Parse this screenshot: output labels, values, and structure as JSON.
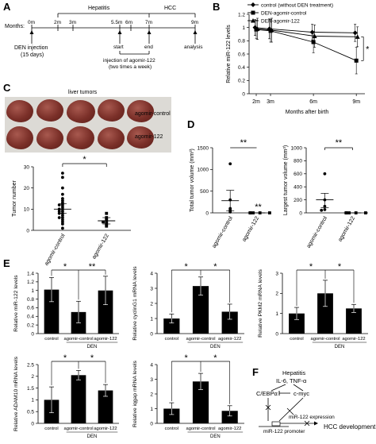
{
  "panel_labels": {
    "a": "A",
    "b": "B",
    "c": "C",
    "d": "D",
    "e": "E",
    "f": "F"
  },
  "panelA": {
    "months_label": "Months:",
    "phases": [
      "Hepatitis",
      "HCC"
    ],
    "ticks": [
      "0m",
      "2m",
      "3m",
      "5.5m",
      "6m",
      "7m",
      "9m"
    ],
    "den_label": "DEN injection",
    "den_sub": "(15 days)",
    "start": "start",
    "end": "end",
    "injection_line1": "injection of agomir-122",
    "injection_line2": "(two times a week)",
    "analysis": "analysis"
  },
  "panelC": {
    "liver_title": "liver tumors",
    "row1": "agomir-control",
    "row2": "agomir-122",
    "ylabel": "Tumor number",
    "star": "*"
  },
  "panelF": {
    "hepatitis": "Hepatitis",
    "cytokines": "IL-6, TNF-α",
    "cebp": "C/EBPα",
    "cmyc": "c-myc",
    "promoter": "miR-122 promoter",
    "expression": "miR-122 expression",
    "hcc": "HCC development"
  },
  "chart_data": [
    {
      "id": "B",
      "type": "line",
      "ylabel": "Relative miR-122 levels",
      "xlabel": "Months after birth",
      "x": [
        2,
        3,
        6,
        9
      ],
      "x_ticks": [
        "2m",
        "3m",
        "6m",
        "9m"
      ],
      "ylim": [
        0,
        1.2
      ],
      "yticks": [
        0,
        0.2,
        0.4,
        0.6,
        0.8,
        1,
        1.2
      ],
      "series": [
        {
          "name": "control (without DEN treatment)",
          "marker": "diamond",
          "values": [
            1.0,
            0.98,
            0.93,
            0.92
          ],
          "err": [
            0.12,
            0.15,
            0.12,
            0.13
          ]
        },
        {
          "name": "DEN-agomir-control",
          "marker": "square",
          "values": [
            0.97,
            0.95,
            0.78,
            0.5
          ],
          "err": [
            0.14,
            0.17,
            0.16,
            0.2
          ]
        },
        {
          "name": "DEN-agomir-122",
          "marker": "triangle",
          "values": [
            0.98,
            0.96,
            0.87,
            0.86
          ],
          "err": [
            0.16,
            0.18,
            0.17,
            0.15
          ]
        }
      ],
      "annotation": "*"
    },
    {
      "id": "C",
      "type": "scatter",
      "ylabel": "Tumor number",
      "categories": [
        "agomir-control",
        "agomir-122"
      ],
      "ylim": [
        0,
        30
      ],
      "yticks": [
        0,
        10,
        20,
        30
      ],
      "groups": [
        {
          "name": "agomir-control",
          "mean": 10,
          "sem_low": 8,
          "sem_high": 12.5,
          "values": [
            27,
            25,
            20,
            17,
            15,
            14,
            13,
            12,
            12,
            11,
            10,
            10,
            9,
            9,
            8,
            8,
            7,
            6,
            6,
            5,
            4,
            3,
            1
          ]
        },
        {
          "name": "agomir-122",
          "mean": 4.5,
          "sem_low": 3,
          "sem_high": 6,
          "values": [
            8,
            6,
            5,
            4,
            4,
            3,
            2
          ]
        }
      ]
    },
    {
      "id": "D1",
      "type": "scatter",
      "ylabel": "Total tumor volume (mm³)",
      "categories": [
        "agomir-control",
        "agomir-122"
      ],
      "ylim": [
        0,
        1500
      ],
      "yticks": [
        0,
        500,
        1000,
        1500
      ],
      "groups": [
        {
          "name": "agomir-control",
          "mean": 280,
          "sem_low": 50,
          "sem_high": 520,
          "values": [
            1130,
            300,
            100,
            60,
            20
          ]
        },
        {
          "name": "agomir-122",
          "mean": 0,
          "sem_low": 0,
          "sem_high": 0,
          "values": [
            0,
            0,
            0,
            0,
            0
          ]
        }
      ],
      "annotations": [
        "**",
        "**"
      ]
    },
    {
      "id": "D2",
      "type": "scatter",
      "ylabel": "Largest tumor volume (mm³)",
      "categories": [
        "agomir-control",
        "agomir-122"
      ],
      "ylim": [
        0,
        1000
      ],
      "yticks": [
        0,
        200,
        400,
        600,
        800,
        1000
      ],
      "groups": [
        {
          "name": "agomir-control",
          "mean": 200,
          "sem_low": 80,
          "sem_high": 300,
          "values": [
            600,
            200,
            100,
            50,
            40
          ]
        },
        {
          "name": "agomir-122",
          "mean": 0,
          "sem_low": 0,
          "sem_high": 0,
          "values": [
            0,
            0,
            0,
            0,
            0
          ]
        }
      ],
      "annotation": "**"
    },
    {
      "id": "E1",
      "type": "bar",
      "ylabel": "Relative miR-122 levels",
      "categories": [
        "control",
        "agomir-control",
        "agomir-122"
      ],
      "group_label": "DEN",
      "values": [
        1.02,
        0.5,
        1.0
      ],
      "err": [
        0.28,
        0.25,
        0.33
      ],
      "ylim": [
        0,
        1.4
      ],
      "yticks": [
        0,
        0.2,
        0.4,
        0.6,
        0.8,
        1,
        1.2,
        1.4
      ],
      "ytick_labels": [
        "0",
        "0.2",
        "0.4",
        "0.6",
        "0.8",
        "1",
        "1.2",
        "1.4"
      ],
      "stars": [
        "*",
        "**"
      ]
    },
    {
      "id": "E2",
      "type": "bar",
      "ylabel": "Relative cyclinG1 mRNA levels",
      "categories": [
        "control",
        "agomir-control",
        "agomir-122"
      ],
      "group_label": "DEN",
      "values": [
        1.0,
        3.15,
        1.45
      ],
      "err": [
        0.3,
        0.6,
        0.5
      ],
      "ylim": [
        0,
        4
      ],
      "yticks": [
        0,
        1,
        2,
        3,
        4
      ],
      "ytick_labels": [
        "0",
        "1",
        "2",
        "3",
        "4"
      ],
      "stars": [
        "*",
        "*"
      ]
    },
    {
      "id": "E3",
      "type": "bar",
      "ylabel": "Relative PKM2 mRNA levels",
      "categories": [
        "control",
        "agomir-control",
        "agomir-122"
      ],
      "group_label": "DEN",
      "values": [
        1.0,
        2.0,
        1.25
      ],
      "err": [
        0.3,
        0.65,
        0.2
      ],
      "ylim": [
        0,
        3
      ],
      "yticks": [
        0,
        1,
        2,
        3
      ],
      "ytick_labels": [
        "0",
        "1",
        "2",
        "3"
      ],
      "stars": [
        "*",
        "*"
      ]
    },
    {
      "id": "E4",
      "type": "bar",
      "ylabel": "Relative ADAM10 mRNA levels",
      "categories": [
        "control",
        "agomir-control",
        "agomir-122"
      ],
      "group_label": "DEN",
      "values": [
        1.0,
        2.05,
        1.4
      ],
      "err": [
        0.55,
        0.2,
        0.25
      ],
      "ylim": [
        0,
        2.5
      ],
      "yticks": [
        0,
        0.5,
        1,
        1.5,
        2,
        2.5
      ],
      "ytick_labels": [
        "0",
        "0.5",
        "1",
        "1.5",
        "2",
        "2.5"
      ],
      "stars": [
        "*",
        "*"
      ]
    },
    {
      "id": "E5",
      "type": "bar",
      "ylabel": "Relative iqgap mRNA levels",
      "categories": [
        "control",
        "agomir-control",
        "agomir-122"
      ],
      "group_label": "DEN",
      "values": [
        1.0,
        2.85,
        0.85
      ],
      "err": [
        0.4,
        0.55,
        0.35
      ],
      "ylim": [
        0,
        4
      ],
      "yticks": [
        0,
        1,
        2,
        3,
        4
      ],
      "ytick_labels": [
        "0",
        "1",
        "2",
        "3",
        "4"
      ],
      "stars": [
        "*",
        "*"
      ]
    }
  ]
}
